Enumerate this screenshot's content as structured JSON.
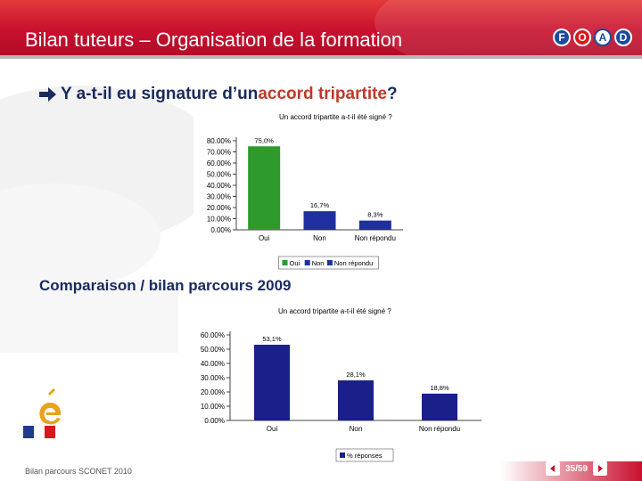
{
  "slide": {
    "title": "Bilan tuteurs – Organisation de la formation",
    "question_main": "Y a-t-il eu signature d’un ",
    "question_accent": "accord tripartite",
    "question_end": " ?",
    "comparison": "Comparaison / bilan parcours 2009",
    "footer": "Bilan parcours SCONET 2010",
    "page": "35/59"
  },
  "logo": {
    "letters": [
      "F",
      "O",
      "A",
      "D"
    ]
  },
  "colors": {
    "header": "#c8102e",
    "oui": "#2e9a2e",
    "non": "#1f2fa0",
    "bar2": "#1a1f8a"
  },
  "chart_data": [
    {
      "type": "bar",
      "title": "Un accord tripartite a-t-il été signé ?",
      "categories": [
        "Oui",
        "Non",
        "Non répondu"
      ],
      "values": [
        75.0,
        16.7,
        8.3
      ],
      "data_labels": [
        "75,0%",
        "16,7%",
        "8,3%"
      ],
      "yticks": [
        "80.00%",
        "70.00%",
        "60.00%",
        "50.00%",
        "40.00%",
        "30.00%",
        "20.00%",
        "10.00%",
        "0.00%"
      ],
      "ylim": [
        0,
        80
      ],
      "legend": [
        "Oui",
        "Non",
        "Non répondu"
      ],
      "legend_position": "bottom",
      "colors": [
        "#2e9a2e",
        "#1f2fa0",
        "#1f2fa0"
      ]
    },
    {
      "type": "bar",
      "title": "Un accord tripartite a-t-il été signé ?",
      "categories": [
        "Oui",
        "Non",
        "Non répondu"
      ],
      "values": [
        53.1,
        28.1,
        18.8
      ],
      "data_labels": [
        "53,1%",
        "28,1%",
        "18,8%"
      ],
      "yticks": [
        "60.00%",
        "50.00%",
        "40.00%",
        "30.00%",
        "20.00%",
        "10.00%",
        "0.00%"
      ],
      "ylim": [
        0,
        60
      ],
      "legend": [
        "% réponses"
      ],
      "legend_position": "bottom",
      "colors": [
        "#1a1f8a",
        "#1a1f8a",
        "#1a1f8a"
      ]
    }
  ]
}
